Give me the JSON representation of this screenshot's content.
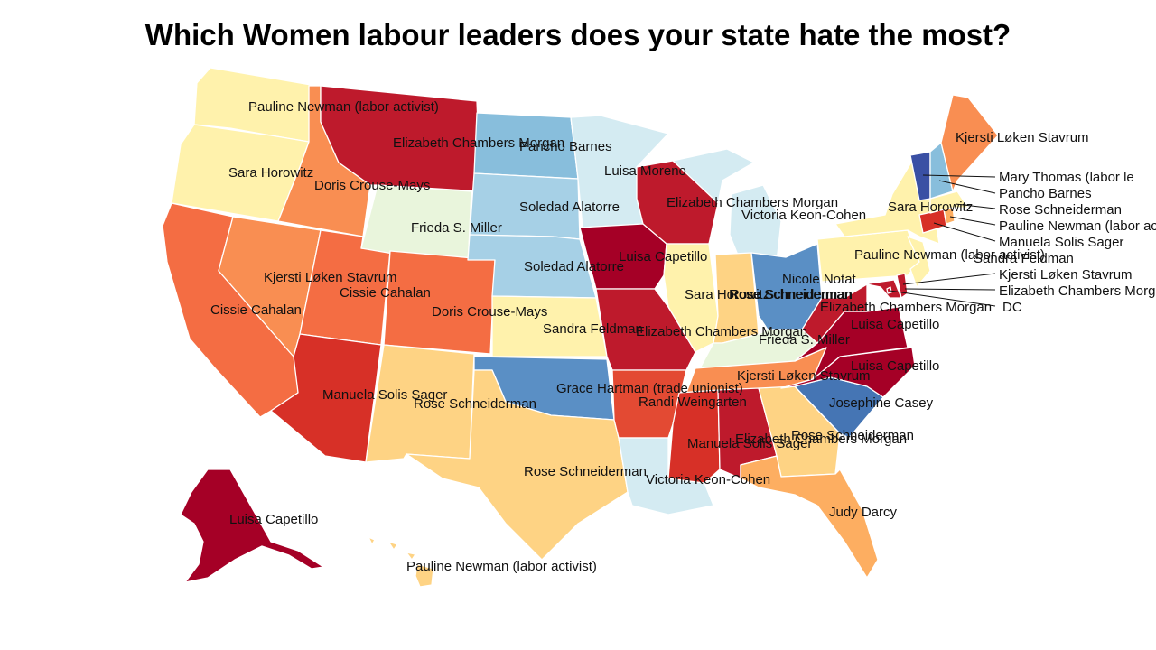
{
  "title": "Which Women labour leaders does your state hate the most?",
  "colors": {
    "dark_red": "#a50026",
    "red": "#be1a2c",
    "red_orange": "#d73027",
    "orange_red": "#e34a33",
    "coral": "#f46d43",
    "orange": "#f98e52",
    "light_orange": "#fdae61",
    "sand": "#fed384",
    "light_yellow": "#fff2ac",
    "pale_green": "#e9f5dc",
    "pale_blue": "#d4ebf2",
    "light_blue": "#a6d0e6",
    "sky_blue": "#88bedc",
    "steel_blue": "#5a8fc5",
    "blue": "#4575b4",
    "navy": "#3a50a4",
    "border": "#ffffff"
  },
  "states": {
    "WA": {
      "label": "Pauline Newman (labor activist)",
      "fill": "light_yellow"
    },
    "OR": {
      "label": "Sara Horowitz",
      "fill": "light_yellow"
    },
    "CA": {
      "label": "Cissie Cahalan",
      "fill": "coral"
    },
    "ID": {
      "label": "Doris Crouse-Mays",
      "fill": "orange"
    },
    "NV": {
      "label": "Kjersti Løken Stavrum",
      "fill": "orange"
    },
    "UT": {
      "label": "Cissie Cahalan",
      "fill": "coral"
    },
    "AZ": {
      "label": "Manuela Solis Sager",
      "fill": "red_orange"
    },
    "MT": {
      "label": "Elizabeth Chambers Morgan",
      "fill": "red"
    },
    "WY": {
      "label": "Frieda S. Miller",
      "fill": "pale_green"
    },
    "CO": {
      "label": "Doris Crouse-Mays",
      "fill": "coral"
    },
    "NM": {
      "label": "Rose Schneiderman",
      "fill": "sand"
    },
    "ND": {
      "label": "Pancho Barnes",
      "fill": "sky_blue"
    },
    "SD": {
      "label": "Soledad Alatorre",
      "fill": "light_blue"
    },
    "NE": {
      "label": "Soledad Alatorre",
      "fill": "light_blue"
    },
    "KS": {
      "label": "Sandra Feldman",
      "fill": "light_yellow"
    },
    "OK": {
      "label": "Grace Hartman (trade unionist)",
      "fill": "steel_blue"
    },
    "TX": {
      "label": "Rose Schneiderman",
      "fill": "sand"
    },
    "MN": {
      "label": "Luisa Moreno",
      "fill": "pale_blue"
    },
    "IA": {
      "label": "Luisa Capetillo",
      "fill": "dark_red"
    },
    "MO": {
      "label": "Elizabeth Chambers Morgan",
      "fill": "red"
    },
    "AR": {
      "label": "Randi Weingarten",
      "fill": "orange_red"
    },
    "LA": {
      "label": "Victoria Keon-Cohen",
      "fill": "pale_blue"
    },
    "WI": {
      "label": "Elizabeth Chambers Morgan",
      "fill": "red"
    },
    "MI": {
      "label": "Victoria Keon-Cohen",
      "fill": "pale_blue"
    },
    "IL": {
      "label": "Sara Horowitz",
      "fill": "light_yellow"
    },
    "IN": {
      "label": "Rose Schneiderman",
      "fill": "sand"
    },
    "OH": {
      "label": "Nicole Notat",
      "fill": "steel_blue"
    },
    "KY": {
      "label": "Frieda S. Miller",
      "fill": "pale_green"
    },
    "TN": {
      "label": "Kjersti Løken Stavrum",
      "fill": "orange"
    },
    "MS": {
      "label": "Manuela Solis Sager",
      "fill": "red_orange"
    },
    "AL": {
      "label": "Elizabeth Chambers Morgan",
      "fill": "red"
    },
    "GA": {
      "label": "Rose Schneiderman",
      "fill": "sand"
    },
    "FL": {
      "label": "Judy Darcy",
      "fill": "light_orange"
    },
    "SC": {
      "label": "Josephine Casey",
      "fill": "blue"
    },
    "NC": {
      "label": "Luisa Capetillo",
      "fill": "dark_red"
    },
    "VA": {
      "label": "Luisa Capetillo",
      "fill": "dark_red"
    },
    "WV": {
      "label": "Rose Schneiderman",
      "fill": "red"
    },
    "PA": {
      "label": "Pauline Newman (labor activist)",
      "fill": "light_yellow"
    },
    "NY": {
      "label": "Sara Horowitz",
      "fill": "light_yellow"
    },
    "NJ": {
      "label": "Sandra Feldman",
      "fill": "light_yellow"
    },
    "MD": {
      "label": "Kjersti Løken Stavrum",
      "fill": "red"
    },
    "DE": {
      "label": "Elizabeth Chambers Morgan",
      "fill": "red"
    },
    "DC": {
      "label": "DC",
      "fill": "red"
    },
    "CT": {
      "label": "Manuela Solis Sager",
      "fill": "red_orange"
    },
    "RI": {
      "label": "Pauline Newman (labor activist)",
      "fill": "light_orange"
    },
    "MA": {
      "label": "Rose Schneiderman",
      "fill": "light_yellow"
    },
    "VT": {
      "label": "Mary Thomas (labor le",
      "fill": "navy"
    },
    "NH": {
      "label": "Pancho Barnes",
      "fill": "sky_blue"
    },
    "ME": {
      "label": "Kjersti Løken Stavrum",
      "fill": "orange"
    },
    "AK": {
      "label": "Luisa Capetillo",
      "fill": "dark_red"
    },
    "HI": {
      "label": "Pauline Newman (labor activist)",
      "fill": "sand"
    }
  }
}
